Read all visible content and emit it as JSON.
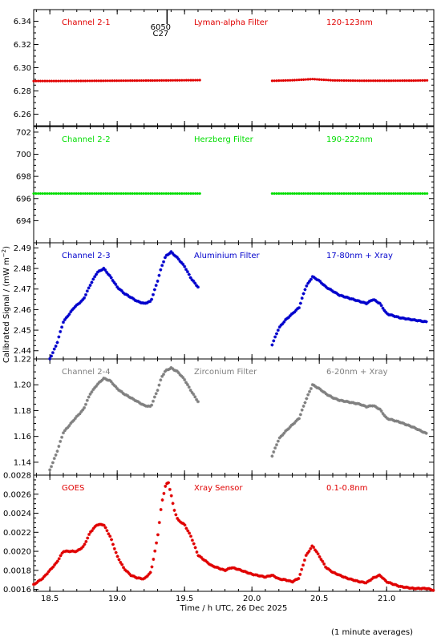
{
  "chart_data": {
    "type": "scatter",
    "xlabel": "Time / h UTC, 26 Dec 2025",
    "ylabel": "Calibrated Signal / (mW m⁻²)",
    "footnote": "(1 minute averages)",
    "marker_annotation": {
      "x": 19.37,
      "lines": [
        "6050",
        "C27"
      ]
    },
    "xlim": [
      18.38,
      21.35
    ],
    "xticks": [
      18.5,
      19.0,
      19.5,
      20.0,
      20.5,
      21.0
    ],
    "xtick_labels": [
      "18.5",
      "19.0",
      "19.5",
      "20.0",
      "20.5",
      "21.0"
    ],
    "data_gap": [
      19.62,
      20.15
    ],
    "panels": [
      {
        "name": "Channel 2-1",
        "filter": "Lyman-alpha Filter",
        "band": "120-123nm",
        "color": "#e00000",
        "ylim": [
          6.25,
          6.35
        ],
        "yticks": [
          6.26,
          6.28,
          6.3,
          6.32,
          6.34
        ],
        "ytick_labels": [
          "6.26",
          "6.28",
          "6.30",
          "6.32",
          "6.34"
        ],
        "series": [
          {
            "x": [
              18.38,
              18.7,
              19.0,
              19.3,
              19.62
            ],
            "y": [
              6.2885,
              6.2886,
              6.2888,
              6.289,
              6.2893
            ]
          },
          {
            "x": [
              20.15,
              20.3,
              20.45,
              20.6,
              20.8,
              21.0,
              21.2,
              21.3
            ],
            "y": [
              6.2887,
              6.2892,
              6.2902,
              6.2891,
              6.2888,
              6.2888,
              6.2889,
              6.2891
            ]
          }
        ]
      },
      {
        "name": "Channel 2-2",
        "filter": "Herzberg Filter",
        "band": "190-222nm",
        "color": "#00dd00",
        "ylim": [
          692.0,
          702.5
        ],
        "yticks": [
          694,
          696,
          698,
          700,
          702
        ],
        "ytick_labels": [
          "694",
          "696",
          "698",
          "700",
          "702"
        ],
        "series": [
          {
            "x": [
              18.38,
              19.0,
              19.62
            ],
            "y": [
              696.45,
              696.45,
              696.45
            ]
          },
          {
            "x": [
              20.15,
              20.7,
              21.3
            ],
            "y": [
              696.45,
              696.45,
              696.45
            ]
          }
        ]
      },
      {
        "name": "Channel 2-3",
        "filter": "Aluminium Filter",
        "band": "17-80nm + Xray",
        "color": "#0000cc",
        "ylim": [
          2.436,
          2.4925
        ],
        "yticks": [
          2.44,
          2.45,
          2.46,
          2.47,
          2.48,
          2.49
        ],
        "ytick_labels": [
          "2.44",
          "2.45",
          "2.46",
          "2.47",
          "2.48",
          "2.49"
        ],
        "series": [
          {
            "x": [
              18.5,
              18.55,
              18.6,
              18.68,
              18.75,
              18.8,
              18.85,
              18.9,
              18.95,
              19.0,
              19.05,
              19.1,
              19.15,
              19.2,
              19.25,
              19.3,
              19.33,
              19.36,
              19.4,
              19.45,
              19.5,
              19.55,
              19.6
            ],
            "y": [
              2.436,
              2.443,
              2.454,
              2.461,
              2.465,
              2.472,
              2.478,
              2.48,
              2.476,
              2.471,
              2.468,
              2.466,
              2.464,
              2.463,
              2.464,
              2.474,
              2.481,
              2.486,
              2.488,
              2.485,
              2.481,
              2.475,
              2.471
            ]
          },
          {
            "x": [
              20.15,
              20.2,
              20.25,
              20.3,
              20.35,
              20.4,
              20.45,
              20.5,
              20.55,
              20.6,
              20.65,
              20.7,
              20.8,
              20.85,
              20.9,
              20.95,
              21.0,
              21.1,
              21.2,
              21.3
            ],
            "y": [
              2.443,
              2.451,
              2.455,
              2.458,
              2.461,
              2.471,
              2.476,
              2.474,
              2.471,
              2.469,
              2.467,
              2.466,
              2.464,
              2.463,
              2.465,
              2.463,
              2.458,
              2.456,
              2.455,
              2.454
            ]
          }
        ]
      },
      {
        "name": "Channel 2-4",
        "filter": "Zirconium Filter",
        "band": "6-20nm + Xray",
        "color": "#808080",
        "ylim": [
          1.13,
          1.22
        ],
        "yticks": [
          1.14,
          1.16,
          1.18,
          1.2,
          1.22
        ],
        "ytick_labels": [
          "1.14",
          "1.16",
          "1.18",
          "1.20",
          "1.22"
        ],
        "series": [
          {
            "x": [
              18.5,
              18.55,
              18.6,
              18.68,
              18.75,
              18.8,
              18.85,
              18.9,
              18.95,
              19.0,
              19.05,
              19.1,
              19.15,
              19.2,
              19.25,
              19.3,
              19.33,
              19.36,
              19.4,
              19.45,
              19.5,
              19.55,
              19.6
            ],
            "y": [
              1.134,
              1.147,
              1.163,
              1.173,
              1.181,
              1.193,
              1.2,
              1.205,
              1.203,
              1.197,
              1.193,
              1.19,
              1.187,
              1.184,
              1.183,
              1.196,
              1.206,
              1.211,
              1.213,
              1.21,
              1.204,
              1.195,
              1.187
            ]
          },
          {
            "x": [
              20.15,
              20.2,
              20.25,
              20.3,
              20.35,
              20.4,
              20.45,
              20.5,
              20.55,
              20.6,
              20.65,
              20.7,
              20.8,
              20.85,
              20.9,
              20.95,
              21.0,
              21.1,
              21.2,
              21.3
            ],
            "y": [
              1.145,
              1.158,
              1.164,
              1.169,
              1.174,
              1.188,
              1.2,
              1.197,
              1.193,
              1.19,
              1.188,
              1.187,
              1.185,
              1.183,
              1.184,
              1.181,
              1.174,
              1.171,
              1.167,
              1.162
            ]
          }
        ]
      },
      {
        "name": "GOES",
        "filter": "Xray Sensor",
        "band": "0.1-0.8nm",
        "color": "#e00000",
        "ylim": [
          0.00158,
          0.0028
        ],
        "yticks": [
          0.0016,
          0.0018,
          0.002,
          0.0022,
          0.0024,
          0.0026,
          0.0028
        ],
        "ytick_labels": [
          "0.0016",
          "0.0018",
          "0.0020",
          "0.0022",
          "0.0024",
          "0.0026",
          "0.0028"
        ],
        "series": [
          {
            "x": [
              18.38,
              18.45,
              18.5,
              18.55,
              18.6,
              18.65,
              18.7,
              18.75,
              18.8,
              18.85,
              18.9,
              18.95,
              19.0,
              19.05,
              19.1,
              19.15,
              19.2,
              19.25,
              19.3,
              19.33,
              19.36,
              19.38,
              19.4,
              19.42,
              19.45,
              19.5,
              19.55,
              19.6,
              19.7,
              19.8,
              19.85,
              19.9,
              20.0,
              20.1,
              20.15,
              20.2,
              20.25,
              20.3,
              20.35,
              20.4,
              20.45,
              20.5,
              20.55,
              20.6,
              20.7,
              20.8,
              20.85,
              20.9,
              20.95,
              21.0,
              21.1,
              21.2,
              21.3,
              21.35
            ],
            "y": [
              0.00165,
              0.00172,
              0.0018,
              0.00188,
              0.002,
              0.002,
              0.002,
              0.00205,
              0.0022,
              0.00228,
              0.00228,
              0.00215,
              0.00195,
              0.00182,
              0.00175,
              0.00172,
              0.00171,
              0.00178,
              0.00215,
              0.0025,
              0.0027,
              0.00272,
              0.0026,
              0.00245,
              0.00233,
              0.00228,
              0.00215,
              0.00196,
              0.00185,
              0.0018,
              0.00183,
              0.00181,
              0.00176,
              0.00173,
              0.00175,
              0.00171,
              0.0017,
              0.00168,
              0.00172,
              0.00195,
              0.00206,
              0.00195,
              0.00183,
              0.00178,
              0.00172,
              0.00168,
              0.00167,
              0.00172,
              0.00175,
              0.00168,
              0.00163,
              0.00161,
              0.00161,
              0.00159
            ]
          }
        ]
      }
    ]
  }
}
